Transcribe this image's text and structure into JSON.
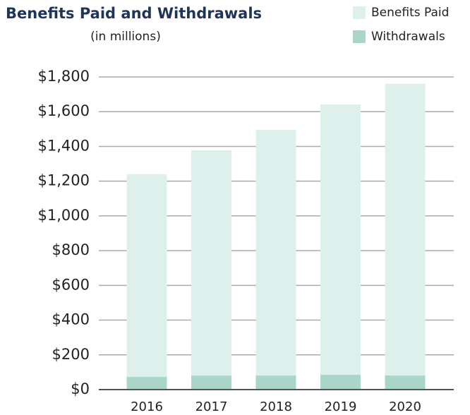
{
  "chart_data": {
    "type": "bar",
    "stacked": true,
    "title": "Benefits Paid and Withdrawals",
    "subtitle": "(in millions)",
    "categories": [
      "2016",
      "2017",
      "2018",
      "2019",
      "2020"
    ],
    "series": [
      {
        "name": "Withdrawals",
        "color": "#a9d6c9",
        "values": [
          73,
          81,
          81,
          85,
          81
        ]
      },
      {
        "name": "Benefits Paid",
        "color": "#ddf0ec",
        "values": [
          1167,
          1297,
          1415,
          1557,
          1679
        ]
      }
    ],
    "ylim": [
      0,
      1800
    ],
    "yticks": [
      {
        "value": 0,
        "label": "$0"
      },
      {
        "value": 200,
        "label": "$200"
      },
      {
        "value": 400,
        "label": "$400"
      },
      {
        "value": 600,
        "label": "$600"
      },
      {
        "value": 800,
        "label": "$800"
      },
      {
        "value": 1000,
        "label": "$1,000"
      },
      {
        "value": 1200,
        "label": "$1,200"
      },
      {
        "value": 1400,
        "label": "$1,400"
      },
      {
        "value": 1600,
        "label": "$1,600"
      },
      {
        "value": 1800,
        "label": "$1,800"
      }
    ],
    "grid": true,
    "legend": "top-right"
  }
}
